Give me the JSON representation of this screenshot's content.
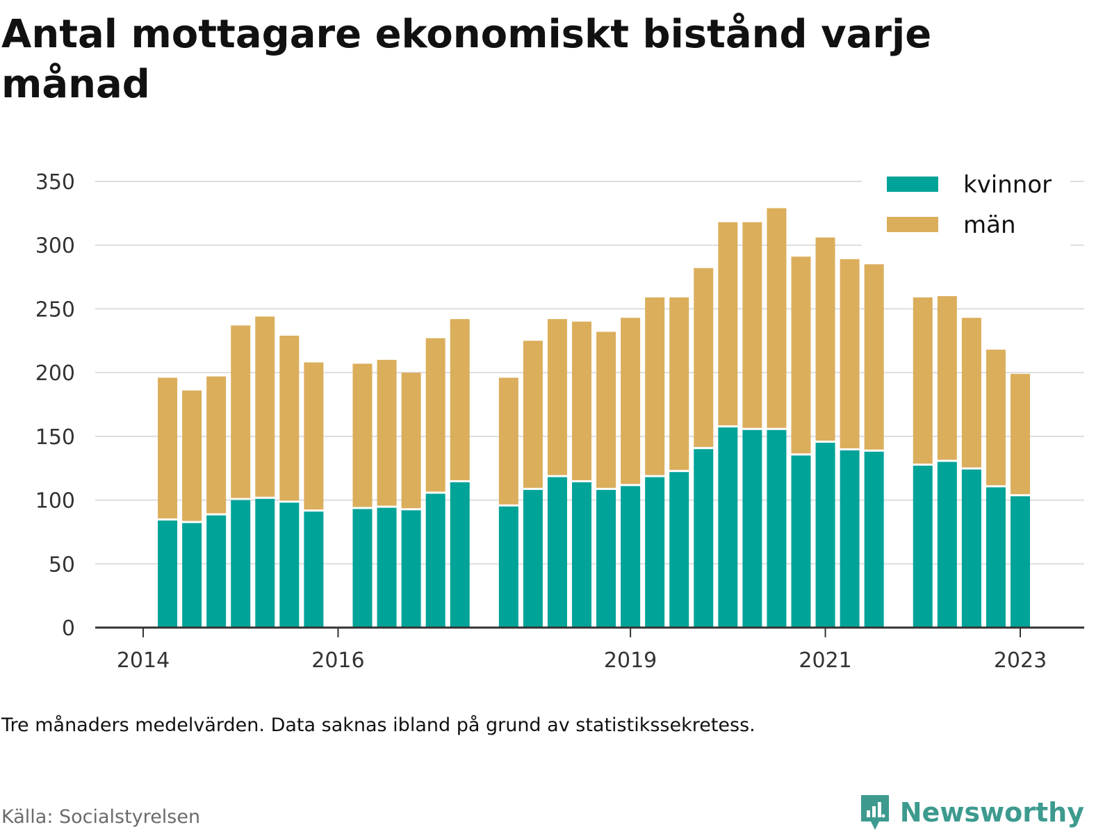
{
  "title": "Antal mottagare ekonomiskt bistånd varje månad",
  "note": "Tre månaders medelvärden. Data saknas ibland på grund av statistikssekretess.",
  "source": "Källa: Socialstyrelsen",
  "brand": "Newsworthy",
  "colors": {
    "kvinnor": "#00a398",
    "man": "#dbae5c",
    "grid": "#dddddd",
    "axis": "#333333"
  },
  "chart_data": {
    "type": "bar",
    "stacked": true,
    "title": "Antal mottagare ekonomiskt bistånd varje månad",
    "xlabel": "",
    "ylabel": "",
    "ylim": [
      0,
      350
    ],
    "yticks": [
      0,
      50,
      100,
      150,
      200,
      250,
      300,
      350
    ],
    "grid": true,
    "legend_position": "top-right",
    "x_ticks": [
      {
        "label": "2014",
        "x": 2014.0
      },
      {
        "label": "2016",
        "x": 2016.0
      },
      {
        "label": "2019",
        "x": 2019.0
      },
      {
        "label": "2021",
        "x": 2021.0
      },
      {
        "label": "2023",
        "x": 2023.0
      }
    ],
    "x": [
      2014.25,
      2014.5,
      2014.75,
      2015.0,
      2015.25,
      2015.5,
      2015.75,
      2016.25,
      2016.5,
      2016.75,
      2017.0,
      2017.25,
      2017.75,
      2018.0,
      2018.25,
      2018.5,
      2018.75,
      2019.0,
      2019.25,
      2019.5,
      2019.75,
      2020.0,
      2020.25,
      2020.5,
      2020.75,
      2021.0,
      2021.25,
      2021.5,
      2022.0,
      2022.25,
      2022.5,
      2022.75,
      2023.0
    ],
    "series": [
      {
        "name": "kvinnor",
        "values": [
          84,
          82,
          88,
          100,
          101,
          98,
          91,
          93,
          94,
          92,
          105,
          114,
          95,
          108,
          118,
          114,
          108,
          111,
          118,
          122,
          140,
          157,
          155,
          155,
          135,
          145,
          139,
          138,
          127,
          130,
          124,
          110,
          103
        ]
      },
      {
        "name": "män",
        "values": [
          112,
          104,
          109,
          137,
          143,
          131,
          117,
          114,
          116,
          108,
          122,
          128,
          101,
          117,
          124,
          126,
          124,
          132,
          141,
          137,
          142,
          161,
          163,
          174,
          156,
          161,
          150,
          147,
          132,
          130,
          119,
          108,
          96
        ]
      }
    ]
  }
}
